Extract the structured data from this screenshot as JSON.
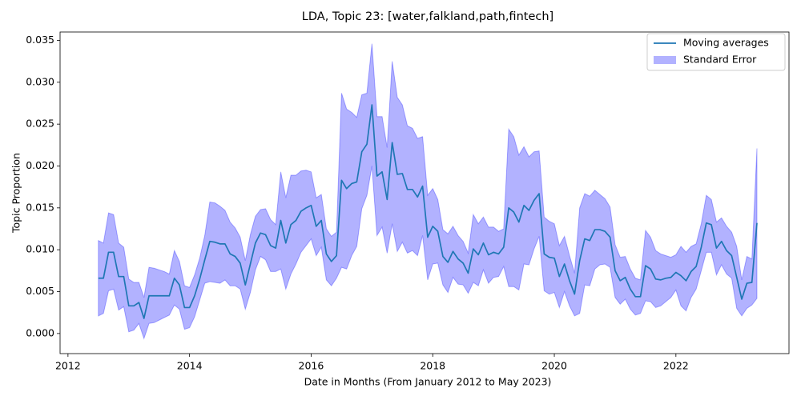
{
  "chart_data": {
    "type": "line_band",
    "title": "LDA, Topic 23: [water,falkland,path,fintech]",
    "xlabel": "Date in Months (From January 2012 to May 2023)",
    "ylabel": "Topic Proportion",
    "xlim": [
      2011.87,
      2023.86
    ],
    "xticks": [
      2012,
      2014,
      2016,
      2018,
      2020,
      2022
    ],
    "ylim": [
      -0.0024,
      0.036
    ],
    "yticks": [
      {
        "value": 0,
        "label": "0.000"
      },
      0.005,
      {
        "value": 0.01,
        "label": "0.010"
      },
      0.015,
      {
        "value": 0.02,
        "label": "0.020"
      },
      0.025,
      {
        "value": 0.03,
        "label": "0.030"
      },
      0.035
    ],
    "legend": "upper right",
    "x": [
      2012.5,
      2012.583,
      2012.667,
      2012.75,
      2012.833,
      2012.917,
      2013.0,
      2013.083,
      2013.167,
      2013.25,
      2013.333,
      2013.417,
      2013.5,
      2013.583,
      2013.667,
      2013.75,
      2013.833,
      2013.917,
      2014.0,
      2014.083,
      2014.167,
      2014.25,
      2014.333,
      2014.417,
      2014.5,
      2014.583,
      2014.667,
      2014.75,
      2014.833,
      2014.917,
      2015.0,
      2015.083,
      2015.167,
      2015.25,
      2015.333,
      2015.417,
      2015.5,
      2015.583,
      2015.667,
      2015.75,
      2015.833,
      2015.917,
      2016.0,
      2016.083,
      2016.167,
      2016.25,
      2016.333,
      2016.417,
      2016.5,
      2016.583,
      2016.667,
      2016.75,
      2016.833,
      2016.917,
      2017.0,
      2017.083,
      2017.167,
      2017.25,
      2017.333,
      2017.417,
      2017.5,
      2017.583,
      2017.667,
      2017.75,
      2017.833,
      2017.917,
      2018.0,
      2018.083,
      2018.167,
      2018.25,
      2018.333,
      2018.417,
      2018.5,
      2018.583,
      2018.667,
      2018.75,
      2018.833,
      2018.917,
      2019.0,
      2019.083,
      2019.167,
      2019.25,
      2019.333,
      2019.417,
      2019.5,
      2019.583,
      2019.667,
      2019.75,
      2019.833,
      2019.917,
      2020.0,
      2020.083,
      2020.167,
      2020.25,
      2020.333,
      2020.417,
      2020.5,
      2020.583,
      2020.667,
      2020.75,
      2020.833,
      2020.917,
      2021.0,
      2021.083,
      2021.167,
      2021.25,
      2021.333,
      2021.417,
      2021.5,
      2021.583,
      2021.667,
      2021.75,
      2021.833,
      2021.917,
      2022.0,
      2022.083,
      2022.167,
      2022.25,
      2022.333,
      2022.417,
      2022.5,
      2022.583,
      2022.667,
      2022.75,
      2022.833,
      2022.917,
      2023.0,
      2023.083,
      2023.167,
      2023.25,
      2023.333
    ],
    "series": [
      {
        "name": "Moving averages",
        "color": "#1f77b4",
        "values": [
          0.0066,
          0.0066,
          0.0097,
          0.0097,
          0.0068,
          0.0068,
          0.0033,
          0.0033,
          0.0037,
          0.0018,
          0.0045,
          0.0045,
          0.0045,
          0.0045,
          0.0045,
          0.0066,
          0.0058,
          0.0031,
          0.0031,
          0.0045,
          0.0065,
          0.0088,
          0.011,
          0.0109,
          0.0107,
          0.0107,
          0.0095,
          0.0092,
          0.0084,
          0.0058,
          0.0083,
          0.0108,
          0.012,
          0.0118,
          0.0105,
          0.0102,
          0.0135,
          0.0108,
          0.013,
          0.0135,
          0.0146,
          0.015,
          0.0153,
          0.0128,
          0.0135,
          0.0095,
          0.0086,
          0.0093,
          0.0183,
          0.0173,
          0.0179,
          0.0181,
          0.0217,
          0.0226,
          0.0273,
          0.0188,
          0.0193,
          0.016,
          0.0228,
          0.019,
          0.0191,
          0.0172,
          0.0172,
          0.0163,
          0.0176,
          0.0115,
          0.0128,
          0.0122,
          0.0092,
          0.0085,
          0.0098,
          0.0089,
          0.0084,
          0.0072,
          0.0101,
          0.0094,
          0.0108,
          0.0094,
          0.0097,
          0.0095,
          0.0103,
          0.015,
          0.0145,
          0.0133,
          0.0153,
          0.0147,
          0.0159,
          0.0167,
          0.0095,
          0.0091,
          0.009,
          0.0068,
          0.0083,
          0.0063,
          0.0047,
          0.0087,
          0.0113,
          0.0111,
          0.0124,
          0.0124,
          0.0122,
          0.0115,
          0.0075,
          0.0063,
          0.0067,
          0.0053,
          0.0044,
          0.0044,
          0.0081,
          0.0077,
          0.0065,
          0.0064,
          0.0066,
          0.0067,
          0.0073,
          0.0069,
          0.0063,
          0.0074,
          0.008,
          0.0103,
          0.0132,
          0.013,
          0.0102,
          0.011,
          0.0099,
          0.0093,
          0.0067,
          0.0041,
          0.006,
          0.0061,
          0.0132
        ]
      },
      {
        "name": "Standard Error",
        "color": "#0000ff",
        "alpha": 0.3,
        "upper": [
          0.0111,
          0.0108,
          0.0144,
          0.0142,
          0.0108,
          0.0103,
          0.0065,
          0.0061,
          0.0061,
          0.0043,
          0.0079,
          0.0078,
          0.0076,
          0.0074,
          0.0071,
          0.0099,
          0.0086,
          0.0057,
          0.0055,
          0.007,
          0.009,
          0.0117,
          0.0157,
          0.0156,
          0.0152,
          0.0147,
          0.0133,
          0.0126,
          0.0115,
          0.0087,
          0.0118,
          0.014,
          0.0148,
          0.0149,
          0.0136,
          0.013,
          0.0193,
          0.0162,
          0.0189,
          0.0189,
          0.0194,
          0.0195,
          0.0193,
          0.0162,
          0.0166,
          0.0125,
          0.0116,
          0.0121,
          0.0287,
          0.0268,
          0.0264,
          0.0258,
          0.0285,
          0.0287,
          0.0346,
          0.0259,
          0.0259,
          0.0222,
          0.0325,
          0.0282,
          0.0273,
          0.0248,
          0.0245,
          0.0233,
          0.0235,
          0.0165,
          0.0173,
          0.016,
          0.0124,
          0.0119,
          0.0128,
          0.0117,
          0.011,
          0.0096,
          0.0142,
          0.0131,
          0.0139,
          0.0127,
          0.0127,
          0.0122,
          0.0125,
          0.0244,
          0.0235,
          0.0213,
          0.0223,
          0.0211,
          0.0217,
          0.0218,
          0.0139,
          0.0134,
          0.0131,
          0.0105,
          0.0116,
          0.0093,
          0.0072,
          0.015,
          0.0167,
          0.0164,
          0.0171,
          0.0166,
          0.0161,
          0.0151,
          0.0106,
          0.0091,
          0.0092,
          0.0077,
          0.0066,
          0.0064,
          0.0123,
          0.0115,
          0.0099,
          0.0095,
          0.0093,
          0.0091,
          0.0094,
          0.0104,
          0.0097,
          0.0104,
          0.0107,
          0.0131,
          0.0165,
          0.016,
          0.0133,
          0.0138,
          0.0128,
          0.0121,
          0.0104,
          0.0064,
          0.0092,
          0.0089,
          0.0221
        ],
        "lower": [
          0.0021,
          0.0024,
          0.0051,
          0.0053,
          0.0028,
          0.0032,
          0.0002,
          0.0004,
          0.0012,
          -0.0006,
          0.0012,
          0.0013,
          0.0016,
          0.0019,
          0.0022,
          0.0034,
          0.0029,
          0.0005,
          0.0007,
          0.002,
          0.004,
          0.006,
          0.0062,
          0.0061,
          0.006,
          0.0064,
          0.0057,
          0.0057,
          0.0053,
          0.0029,
          0.0049,
          0.0076,
          0.0092,
          0.0088,
          0.0074,
          0.0074,
          0.0077,
          0.0053,
          0.0071,
          0.0083,
          0.0097,
          0.0105,
          0.0113,
          0.0093,
          0.0103,
          0.0064,
          0.0057,
          0.0066,
          0.0079,
          0.0077,
          0.0093,
          0.0104,
          0.0149,
          0.0165,
          0.02,
          0.0117,
          0.0127,
          0.0096,
          0.0131,
          0.0098,
          0.0109,
          0.0096,
          0.0099,
          0.0093,
          0.0117,
          0.0064,
          0.0083,
          0.0084,
          0.0058,
          0.0049,
          0.0067,
          0.0059,
          0.0058,
          0.0048,
          0.0061,
          0.0057,
          0.0076,
          0.006,
          0.0067,
          0.0068,
          0.008,
          0.0056,
          0.0056,
          0.0052,
          0.0083,
          0.0082,
          0.0101,
          0.0116,
          0.0051,
          0.0047,
          0.0049,
          0.0031,
          0.005,
          0.0033,
          0.0021,
          0.0024,
          0.0058,
          0.0057,
          0.0077,
          0.0082,
          0.0083,
          0.0079,
          0.0043,
          0.0035,
          0.0041,
          0.0029,
          0.0022,
          0.0024,
          0.0039,
          0.0038,
          0.0031,
          0.0033,
          0.0038,
          0.0043,
          0.0052,
          0.0033,
          0.0027,
          0.0043,
          0.0053,
          0.0075,
          0.0097,
          0.0097,
          0.007,
          0.0082,
          0.0071,
          0.0066,
          0.003,
          0.0021,
          0.003,
          0.0034,
          0.0042
        ]
      }
    ]
  }
}
